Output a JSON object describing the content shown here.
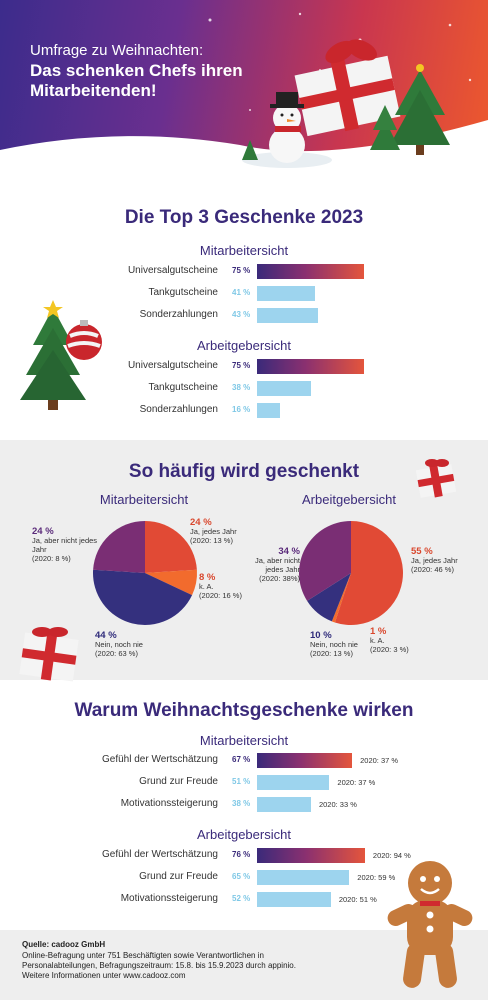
{
  "header": {
    "line1": "Umfrage zu Weihnachten:",
    "line2": "Das schenken Chefs ihren Mitarbeitenden!"
  },
  "colors": {
    "navy": "#3a2a7a",
    "purple": "#8a3070",
    "red": "#e4553c",
    "light_blue": "#9dd4ee",
    "orange": "#f26b2d"
  },
  "chart_data": [
    {
      "type": "bar",
      "title": "Die Top 3 Geschenke 2023",
      "subtitle": "Mitarbeitersicht",
      "categories": [
        "Universalgutscheine",
        "Tankgutscheine",
        "Sonderzahlungen"
      ],
      "values": [
        75,
        41,
        43
      ],
      "labels": [
        "75 %",
        "41 %",
        "43 %"
      ]
    },
    {
      "type": "bar",
      "subtitle": "Arbeitgebersicht",
      "categories": [
        "Universalgutscheine",
        "Tankgutscheine",
        "Sonderzahlungen"
      ],
      "values": [
        75,
        38,
        16
      ],
      "labels": [
        "75 %",
        "38 %",
        "16 %"
      ]
    },
    {
      "type": "pie",
      "title": "So häufig wird geschenkt",
      "subtitle": "Mitarbeitersicht",
      "slices": [
        {
          "value": 24,
          "pct": "24 %",
          "label": "Ja, jedes Jahr",
          "note": "(2020: 13 %)",
          "color": "#e14a35"
        },
        {
          "value": 8,
          "pct": "8 %",
          "label": "k. A.",
          "note": "(2020: 16 %)",
          "color": "#f26b2d"
        },
        {
          "value": 44,
          "pct": "44 %",
          "label": "Nein, noch nie",
          "note": "(2020: 63 %)",
          "color": "#34307e"
        },
        {
          "value": 24,
          "pct": "24 %",
          "label": "Ja, aber nicht jedes Jahr",
          "note": "(2020: 8 %)",
          "color": "#7a2e74"
        }
      ]
    },
    {
      "type": "pie",
      "subtitle": "Arbeitgebersicht",
      "slices": [
        {
          "value": 55,
          "pct": "55 %",
          "label": "Ja, jedes Jahr",
          "note": "(2020: 46 %)",
          "color": "#e14a35"
        },
        {
          "value": 1,
          "pct": "1 %",
          "label": "k. A.",
          "note": "(2020: 3 %)",
          "color": "#f26b2d"
        },
        {
          "value": 10,
          "pct": "10 %",
          "label": "Nein, noch nie",
          "note": "(2020: 13 %)",
          "color": "#34307e"
        },
        {
          "value": 34,
          "pct": "34 %",
          "label": "Ja, aber nicht jedes Jahr",
          "note": "(2020: 38%)",
          "color": "#7a2e74"
        }
      ]
    },
    {
      "type": "bar",
      "title": "Warum Weihnachtsgeschenke wirken",
      "subtitle": "Mitarbeitersicht",
      "categories": [
        "Gefühl der Wertschätzung",
        "Grund zur Freude",
        "Motivationssteigerung"
      ],
      "values": [
        67,
        51,
        38
      ],
      "labels": [
        "67 %",
        "51 %",
        "38 %"
      ],
      "notes": [
        "2020: 37 %",
        "2020: 37 %",
        "2020: 33 %"
      ]
    },
    {
      "type": "bar",
      "subtitle": "Arbeitgebersicht",
      "categories": [
        "Gefühl der Wertschätzung",
        "Grund zur Freude",
        "Motivationssteigerung"
      ],
      "values": [
        76,
        65,
        52
      ],
      "labels": [
        "76 %",
        "65 %",
        "52 %"
      ],
      "notes": [
        "2020: 94 %",
        "2020: 59 %",
        "2020: 51 %"
      ]
    }
  ],
  "footer": {
    "source": "Quelle: cadooz GmbH",
    "text": "Online-Befragung unter 751 Beschäftigten sowie Verantwortlichen in Personalabteilungen, Befragungszeitraum: 15.8. bis 15.9.2023 durch appinio. Weitere Informationen unter www.cadooz.com"
  },
  "decorations": [
    "gift-icon",
    "snowman-icon",
    "christmas-tree-icon",
    "bauble-icon",
    "gingerbread-icon"
  ]
}
